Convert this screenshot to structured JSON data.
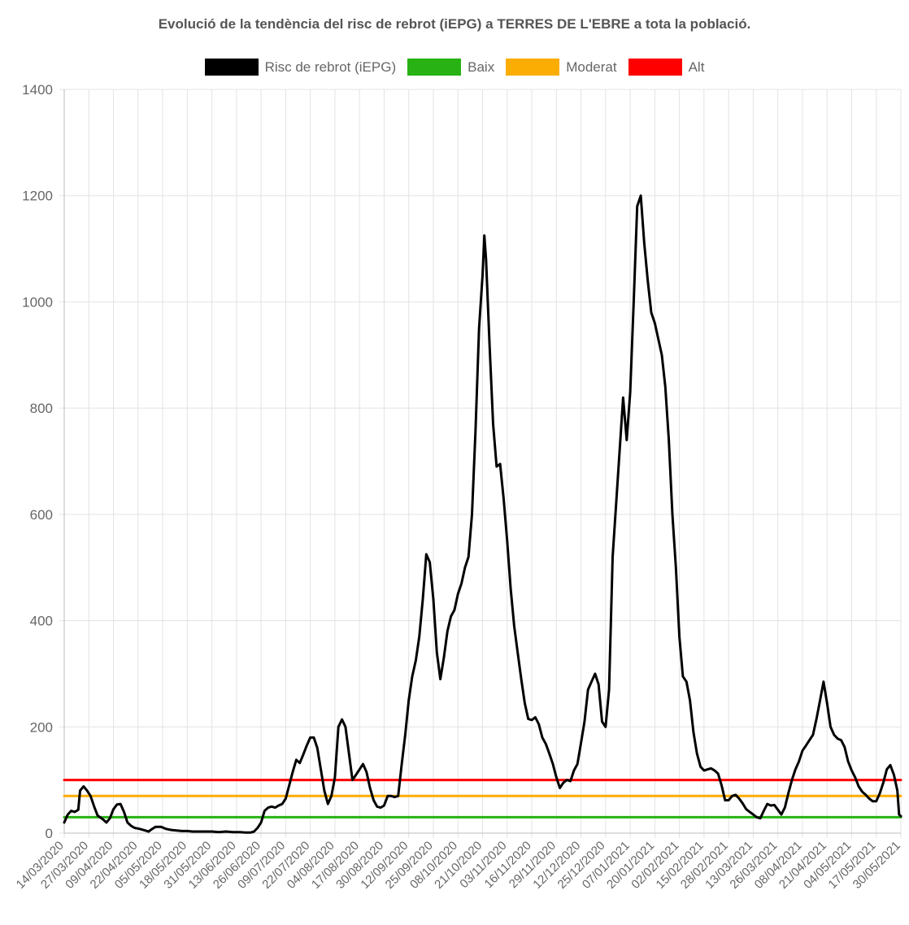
{
  "chart_data": {
    "type": "line",
    "title": "Evolució de la tendència del risc de rebrot (iEPG) a TERRES DE L'EBRE a tota la població.",
    "ylim": [
      0,
      1400
    ],
    "yticks": [
      "0",
      "200",
      "400",
      "600",
      "800",
      "1000",
      "1200",
      "1400"
    ],
    "xticks": [
      "14/03/2020",
      "27/03/2020",
      "09/04/2020",
      "22/04/2020",
      "05/05/2020",
      "18/05/2020",
      "31/05/2020",
      "13/06/2020",
      "26/06/2020",
      "09/07/2020",
      "22/07/2020",
      "04/08/2020",
      "17/08/2020",
      "30/08/2020",
      "12/09/2020",
      "25/09/2020",
      "08/10/2020",
      "21/10/2020",
      "03/11/2020",
      "16/11/2020",
      "29/11/2020",
      "12/12/2020",
      "25/12/2020",
      "07/01/2021",
      "20/01/2021",
      "02/02/2021",
      "15/02/2021",
      "28/02/2021",
      "13/03/2021",
      "26/03/2021",
      "08/04/2021",
      "21/04/2021",
      "04/05/2021",
      "17/05/2021",
      "30/05/2021"
    ],
    "grid": true,
    "legend_position": "top",
    "series": [
      {
        "name": "Risc de rebrot (iEPG)",
        "color": "#000000",
        "points": [
          [
            0,
            20
          ],
          [
            2,
            35
          ],
          [
            4,
            42
          ],
          [
            6,
            40
          ],
          [
            8,
            44
          ],
          [
            9,
            80
          ],
          [
            11,
            88
          ],
          [
            13,
            80
          ],
          [
            15,
            70
          ],
          [
            17,
            50
          ],
          [
            19,
            33
          ],
          [
            22,
            26
          ],
          [
            24,
            20
          ],
          [
            26,
            28
          ],
          [
            28,
            45
          ],
          [
            30,
            54
          ],
          [
            32,
            55
          ],
          [
            34,
            40
          ],
          [
            36,
            20
          ],
          [
            38,
            14
          ],
          [
            40,
            10
          ],
          [
            43,
            8
          ],
          [
            46,
            5
          ],
          [
            48,
            3
          ],
          [
            50,
            8
          ],
          [
            52,
            12
          ],
          [
            55,
            12
          ],
          [
            58,
            8
          ],
          [
            61,
            6
          ],
          [
            64,
            5
          ],
          [
            67,
            4
          ],
          [
            70,
            4
          ],
          [
            73,
            3
          ],
          [
            76,
            3
          ],
          [
            80,
            3
          ],
          [
            84,
            3
          ],
          [
            88,
            2
          ],
          [
            92,
            3
          ],
          [
            96,
            2
          ],
          [
            100,
            2
          ],
          [
            103,
            1
          ],
          [
            106,
            1
          ],
          [
            108,
            3
          ],
          [
            110,
            10
          ],
          [
            112,
            20
          ],
          [
            114,
            42
          ],
          [
            116,
            48
          ],
          [
            118,
            50
          ],
          [
            120,
            48
          ],
          [
            122,
            52
          ],
          [
            124,
            55
          ],
          [
            126,
            65
          ],
          [
            128,
            90
          ],
          [
            130,
            115
          ],
          [
            132,
            138
          ],
          [
            134,
            132
          ],
          [
            136,
            148
          ],
          [
            138,
            165
          ],
          [
            140,
            180
          ],
          [
            142,
            180
          ],
          [
            144,
            160
          ],
          [
            146,
            120
          ],
          [
            148,
            80
          ],
          [
            150,
            55
          ],
          [
            152,
            70
          ],
          [
            154,
            105
          ],
          [
            156,
            200
          ],
          [
            158,
            214
          ],
          [
            160,
            200
          ],
          [
            162,
            150
          ],
          [
            164,
            100
          ],
          [
            166,
            110
          ],
          [
            168,
            120
          ],
          [
            170,
            130
          ],
          [
            172,
            115
          ],
          [
            174,
            85
          ],
          [
            176,
            62
          ],
          [
            178,
            50
          ],
          [
            180,
            48
          ],
          [
            182,
            52
          ],
          [
            184,
            70
          ],
          [
            186,
            70
          ],
          [
            188,
            68
          ],
          [
            190,
            70
          ],
          [
            192,
            130
          ],
          [
            194,
            185
          ],
          [
            196,
            250
          ],
          [
            198,
            295
          ],
          [
            200,
            325
          ],
          [
            202,
            370
          ],
          [
            204,
            440
          ],
          [
            206,
            525
          ],
          [
            208,
            510
          ],
          [
            210,
            440
          ],
          [
            212,
            340
          ],
          [
            214,
            290
          ],
          [
            216,
            330
          ],
          [
            218,
            380
          ],
          [
            220,
            408
          ],
          [
            222,
            420
          ],
          [
            224,
            450
          ],
          [
            226,
            470
          ],
          [
            228,
            500
          ],
          [
            230,
            520
          ],
          [
            232,
            600
          ],
          [
            234,
            760
          ],
          [
            236,
            950
          ],
          [
            238,
            1050
          ],
          [
            239,
            1125
          ],
          [
            240,
            1080
          ],
          [
            242,
            920
          ],
          [
            244,
            770
          ],
          [
            246,
            690
          ],
          [
            248,
            695
          ],
          [
            250,
            630
          ],
          [
            252,
            550
          ],
          [
            254,
            460
          ],
          [
            256,
            390
          ],
          [
            258,
            340
          ],
          [
            260,
            290
          ],
          [
            262,
            245
          ],
          [
            264,
            215
          ],
          [
            266,
            213
          ],
          [
            268,
            218
          ],
          [
            270,
            205
          ],
          [
            272,
            180
          ],
          [
            274,
            168
          ],
          [
            276,
            150
          ],
          [
            278,
            130
          ],
          [
            280,
            105
          ],
          [
            282,
            85
          ],
          [
            284,
            95
          ],
          [
            286,
            100
          ],
          [
            288,
            98
          ],
          [
            290,
            118
          ],
          [
            292,
            130
          ],
          [
            294,
            170
          ],
          [
            296,
            210
          ],
          [
            298,
            270
          ],
          [
            300,
            285
          ],
          [
            302,
            300
          ],
          [
            304,
            280
          ],
          [
            306,
            210
          ],
          [
            308,
            200
          ],
          [
            310,
            270
          ],
          [
            312,
            520
          ],
          [
            314,
            620
          ],
          [
            316,
            720
          ],
          [
            318,
            820
          ],
          [
            320,
            740
          ],
          [
            322,
            830
          ],
          [
            324,
            1000
          ],
          [
            326,
            1180
          ],
          [
            328,
            1200
          ],
          [
            330,
            1110
          ],
          [
            332,
            1040
          ],
          [
            334,
            980
          ],
          [
            336,
            960
          ],
          [
            338,
            930
          ],
          [
            340,
            900
          ],
          [
            342,
            840
          ],
          [
            344,
            740
          ],
          [
            346,
            600
          ],
          [
            348,
            500
          ],
          [
            350,
            370
          ],
          [
            352,
            295
          ],
          [
            354,
            285
          ],
          [
            356,
            250
          ],
          [
            358,
            190
          ],
          [
            360,
            150
          ],
          [
            362,
            125
          ],
          [
            364,
            118
          ],
          [
            366,
            120
          ],
          [
            368,
            122
          ],
          [
            370,
            118
          ],
          [
            372,
            112
          ],
          [
            374,
            90
          ],
          [
            376,
            62
          ],
          [
            378,
            62
          ],
          [
            380,
            70
          ],
          [
            382,
            72
          ],
          [
            384,
            65
          ],
          [
            386,
            56
          ],
          [
            388,
            45
          ],
          [
            390,
            40
          ],
          [
            392,
            35
          ],
          [
            394,
            30
          ],
          [
            396,
            28
          ],
          [
            398,
            42
          ],
          [
            400,
            55
          ],
          [
            402,
            52
          ],
          [
            404,
            53
          ],
          [
            406,
            44
          ],
          [
            408,
            35
          ],
          [
            410,
            48
          ],
          [
            412,
            75
          ],
          [
            414,
            100
          ],
          [
            416,
            120
          ],
          [
            418,
            135
          ],
          [
            420,
            155
          ],
          [
            422,
            165
          ],
          [
            424,
            175
          ],
          [
            426,
            185
          ],
          [
            428,
            215
          ],
          [
            430,
            250
          ],
          [
            432,
            285
          ],
          [
            434,
            245
          ],
          [
            436,
            200
          ],
          [
            438,
            185
          ],
          [
            440,
            178
          ],
          [
            442,
            175
          ],
          [
            444,
            162
          ],
          [
            446,
            135
          ],
          [
            448,
            118
          ],
          [
            450,
            105
          ],
          [
            452,
            88
          ],
          [
            454,
            78
          ],
          [
            456,
            72
          ],
          [
            458,
            65
          ],
          [
            460,
            60
          ],
          [
            462,
            60
          ],
          [
            464,
            75
          ],
          [
            466,
            95
          ],
          [
            468,
            120
          ],
          [
            470,
            128
          ],
          [
            472,
            110
          ],
          [
            474,
            80
          ],
          [
            475,
            35
          ],
          [
            476,
            32
          ]
        ]
      },
      {
        "name": "Baix",
        "color": "#28b214",
        "points": [
          [
            0,
            30
          ],
          [
            476,
            30
          ]
        ]
      },
      {
        "name": "Moderat",
        "color": "#fcad03",
        "points": [
          [
            0,
            70
          ],
          [
            476,
            70
          ]
        ]
      },
      {
        "name": "Alt",
        "color": "#ff0000",
        "points": [
          [
            0,
            100
          ],
          [
            476,
            100
          ]
        ]
      }
    ]
  }
}
